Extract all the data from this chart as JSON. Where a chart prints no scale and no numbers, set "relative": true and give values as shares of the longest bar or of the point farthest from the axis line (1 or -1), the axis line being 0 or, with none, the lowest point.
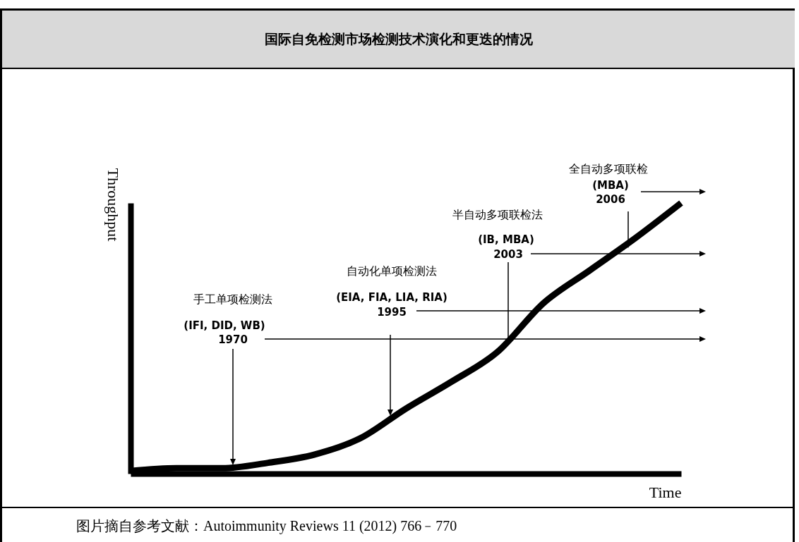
{
  "chart_data": {
    "type": "line",
    "title": "国际自免检测市场检测技术演化和更迭的情况",
    "xlabel": "Time",
    "ylabel": "Throughput",
    "relative": true,
    "grid": false,
    "marker": "none",
    "line_style": "solid",
    "categories": [
      null,
      null,
      null,
      null,
      null,
      null,
      null,
      null,
      null,
      null,
      null,
      null,
      null
    ],
    "series": [
      {
        "color": "#000000",
        "values": [
          0.01,
          0.02,
          0.02,
          0.04,
          0.07,
          0.13,
          0.24,
          0.34,
          0.45,
          0.63,
          0.75,
          0.87,
          1
        ]
      }
    ],
    "annotations": [
      "手工单项检测法",
      "(IFI, DID, WB)",
      "1970",
      "自动化单项检测法",
      "(EIA, FIA, LIA, RIA)",
      "1995",
      "半自动多项联检法",
      "(IB, MBA)",
      "2003",
      "全自动多项联检",
      "(MBA)",
      "2006",
      "图片摘自参考文献：Autoimmunity Reviews 11 (2012) 766﹣770"
    ]
  }
}
